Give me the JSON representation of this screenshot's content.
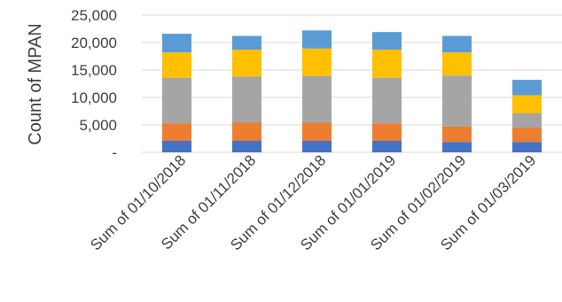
{
  "chart_data": {
    "type": "bar",
    "stacked": true,
    "title": "",
    "xlabel": "",
    "ylabel": "Count of MPAN",
    "ylim": [
      0,
      25000
    ],
    "y_ticks": [
      {
        "value": 0,
        "label": "-"
      },
      {
        "value": 5000,
        "label": "5,000"
      },
      {
        "value": 10000,
        "label": "10,000"
      },
      {
        "value": 15000,
        "label": "15,000"
      },
      {
        "value": 20000,
        "label": "20,000"
      },
      {
        "value": 25000,
        "label": "25,000"
      }
    ],
    "grid": true,
    "legend": "none",
    "categories": [
      "Sum of 01/10/2018",
      "Sum of 01/11/2018",
      "Sum of 01/12/2018",
      "Sum of 01/01/2019",
      "Sum of 01/02/2019",
      "Sum of 01/03/2019"
    ],
    "series": [
      {
        "color": "#4472c4",
        "values": [
          2100,
          2100,
          2100,
          2100,
          1900,
          1900
        ]
      },
      {
        "color": "#ed7d31",
        "values": [
          3200,
          3300,
          3300,
          3200,
          2800,
          2600
        ]
      },
      {
        "color": "#a5a5a5",
        "values": [
          8300,
          8400,
          8500,
          8300,
          9300,
          2600
        ]
      },
      {
        "color": "#ffc000",
        "values": [
          4600,
          4900,
          5000,
          5100,
          4200,
          3300
        ]
      },
      {
        "color": "#5b9bd5",
        "values": [
          3400,
          2500,
          3300,
          3200,
          3000,
          2800
        ]
      }
    ]
  }
}
